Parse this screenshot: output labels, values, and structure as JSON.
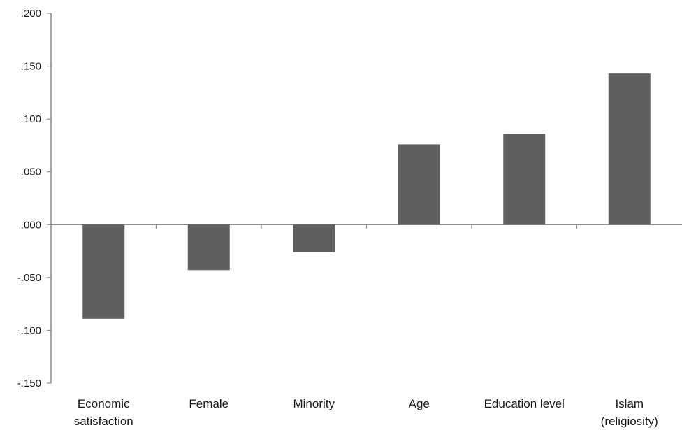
{
  "chart_data": {
    "type": "bar",
    "categories": [
      [
        "Economic",
        "satisfaction"
      ],
      [
        "Female"
      ],
      [
        "Minority"
      ],
      [
        "Age"
      ],
      [
        "Education level"
      ],
      [
        "Islam",
        "(religiosity)"
      ]
    ],
    "values": [
      -0.089,
      -0.043,
      -0.026,
      0.076,
      0.086,
      0.143
    ],
    "title": "",
    "xlabel": "",
    "ylabel": "",
    "ylim": [
      -0.15,
      0.2
    ],
    "yticks": [
      ".200",
      ".150",
      ".100",
      ".050",
      ".000",
      "-.050",
      "-.100",
      "-.150"
    ],
    "ytick_values": [
      0.2,
      0.15,
      0.1,
      0.05,
      0.0,
      -0.05,
      -0.1,
      -0.15
    ],
    "grid": false,
    "legend": "none",
    "colors": {
      "bar": "#5f5f5f",
      "axis": "#8a8a8a",
      "text": "#1a1a1a"
    }
  }
}
